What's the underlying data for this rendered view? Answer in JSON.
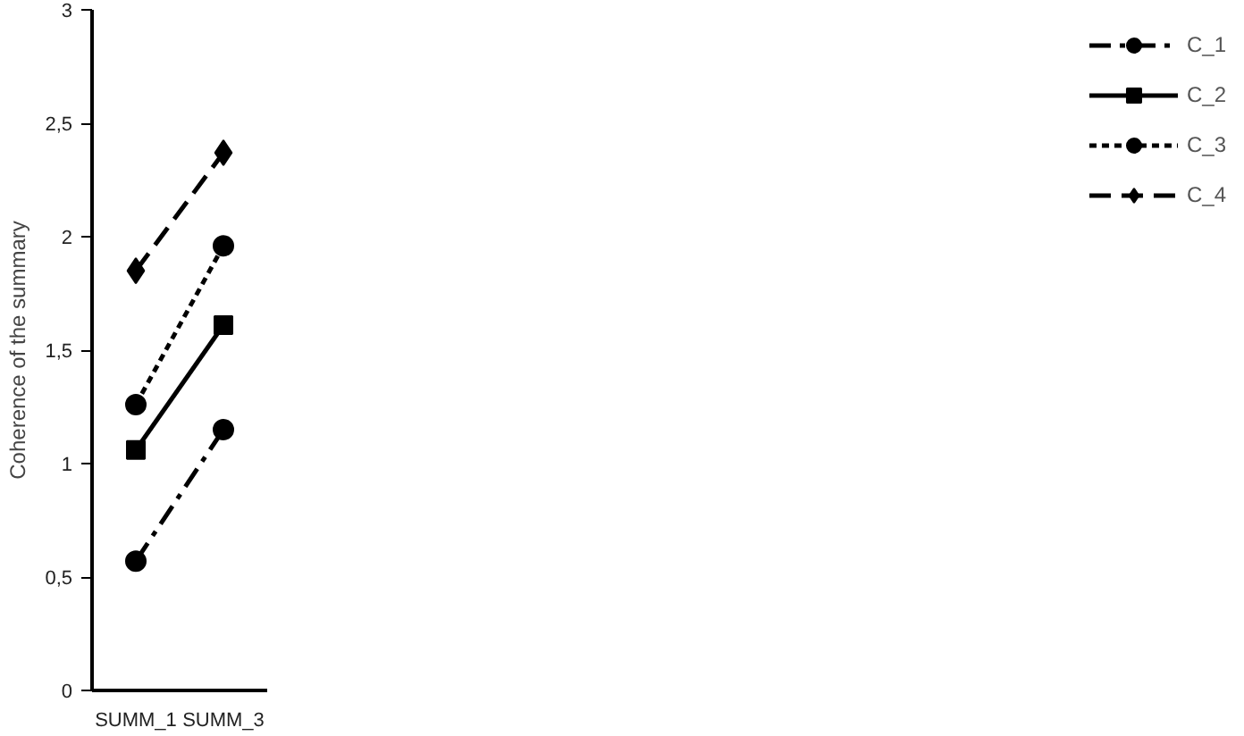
{
  "chart_data": {
    "type": "line",
    "ylabel": "Coherence of the summary",
    "categories": [
      "SUMM_1",
      "SUMM_3"
    ],
    "ylim": [
      0,
      3
    ],
    "yticks": [
      0,
      {
        "value": 0.5,
        "label": "0,5"
      },
      1,
      {
        "value": 1.5,
        "label": "1,5"
      },
      2,
      {
        "value": 2.5,
        "label": "2,5"
      },
      3
    ],
    "grid": false,
    "legend": "right",
    "series": [
      {
        "name": "C_1",
        "color": "#000000",
        "values": [
          0.57,
          1.15
        ],
        "marker": "circle",
        "line_style": "dashdot"
      },
      {
        "name": "C_2",
        "color": "#000000",
        "values": [
          1.06,
          1.61
        ],
        "marker": "square",
        "line_style": "solid"
      },
      {
        "name": "C_3",
        "color": "#000000",
        "values": [
          1.26,
          1.96
        ],
        "marker": "circle",
        "line_style": "dotted"
      },
      {
        "name": "C_4",
        "color": "#000000",
        "values": [
          1.85,
          2.37
        ],
        "marker": "diamond",
        "line_style": "dashed"
      }
    ]
  }
}
